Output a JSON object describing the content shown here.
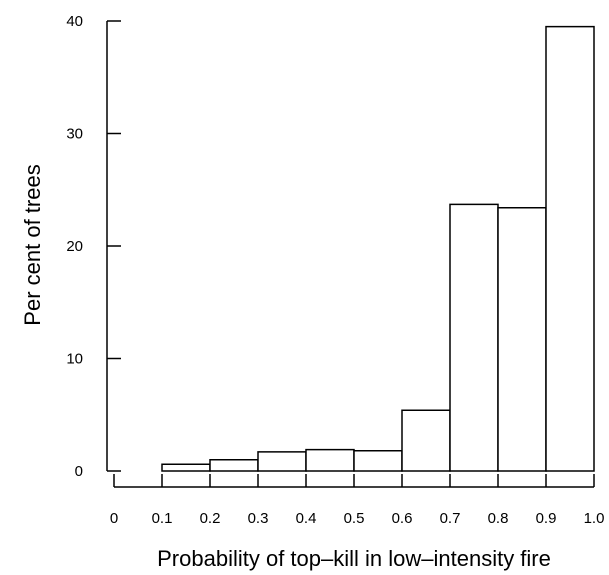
{
  "chart_data": {
    "type": "bar",
    "title": "",
    "xlabel": "Probability of top–kill in low–intensity fire",
    "ylabel": "Per cent of trees",
    "bins": [
      [
        0.1,
        0.2
      ],
      [
        0.2,
        0.3
      ],
      [
        0.3,
        0.4
      ],
      [
        0.4,
        0.5
      ],
      [
        0.5,
        0.6
      ],
      [
        0.6,
        0.7
      ],
      [
        0.7,
        0.8
      ],
      [
        0.8,
        0.9
      ],
      [
        0.9,
        1.0
      ]
    ],
    "values": [
      0.6,
      1.0,
      1.7,
      1.9,
      1.8,
      5.4,
      23.7,
      23.4,
      39.5
    ],
    "xlim": [
      0,
      1.0
    ],
    "ylim": [
      0,
      40
    ],
    "x_ticks": [
      "0",
      "0.1",
      "0.2",
      "0.3",
      "0.4",
      "0.5",
      "0.6",
      "0.7",
      "0.8",
      "0.9",
      "1.0"
    ],
    "y_ticks": [
      "0",
      "10",
      "20",
      "30",
      "40"
    ],
    "grid": false,
    "colors": {
      "bar_fill": "#ffffff",
      "bar_stroke": "#000000",
      "axis": "#000000"
    }
  }
}
